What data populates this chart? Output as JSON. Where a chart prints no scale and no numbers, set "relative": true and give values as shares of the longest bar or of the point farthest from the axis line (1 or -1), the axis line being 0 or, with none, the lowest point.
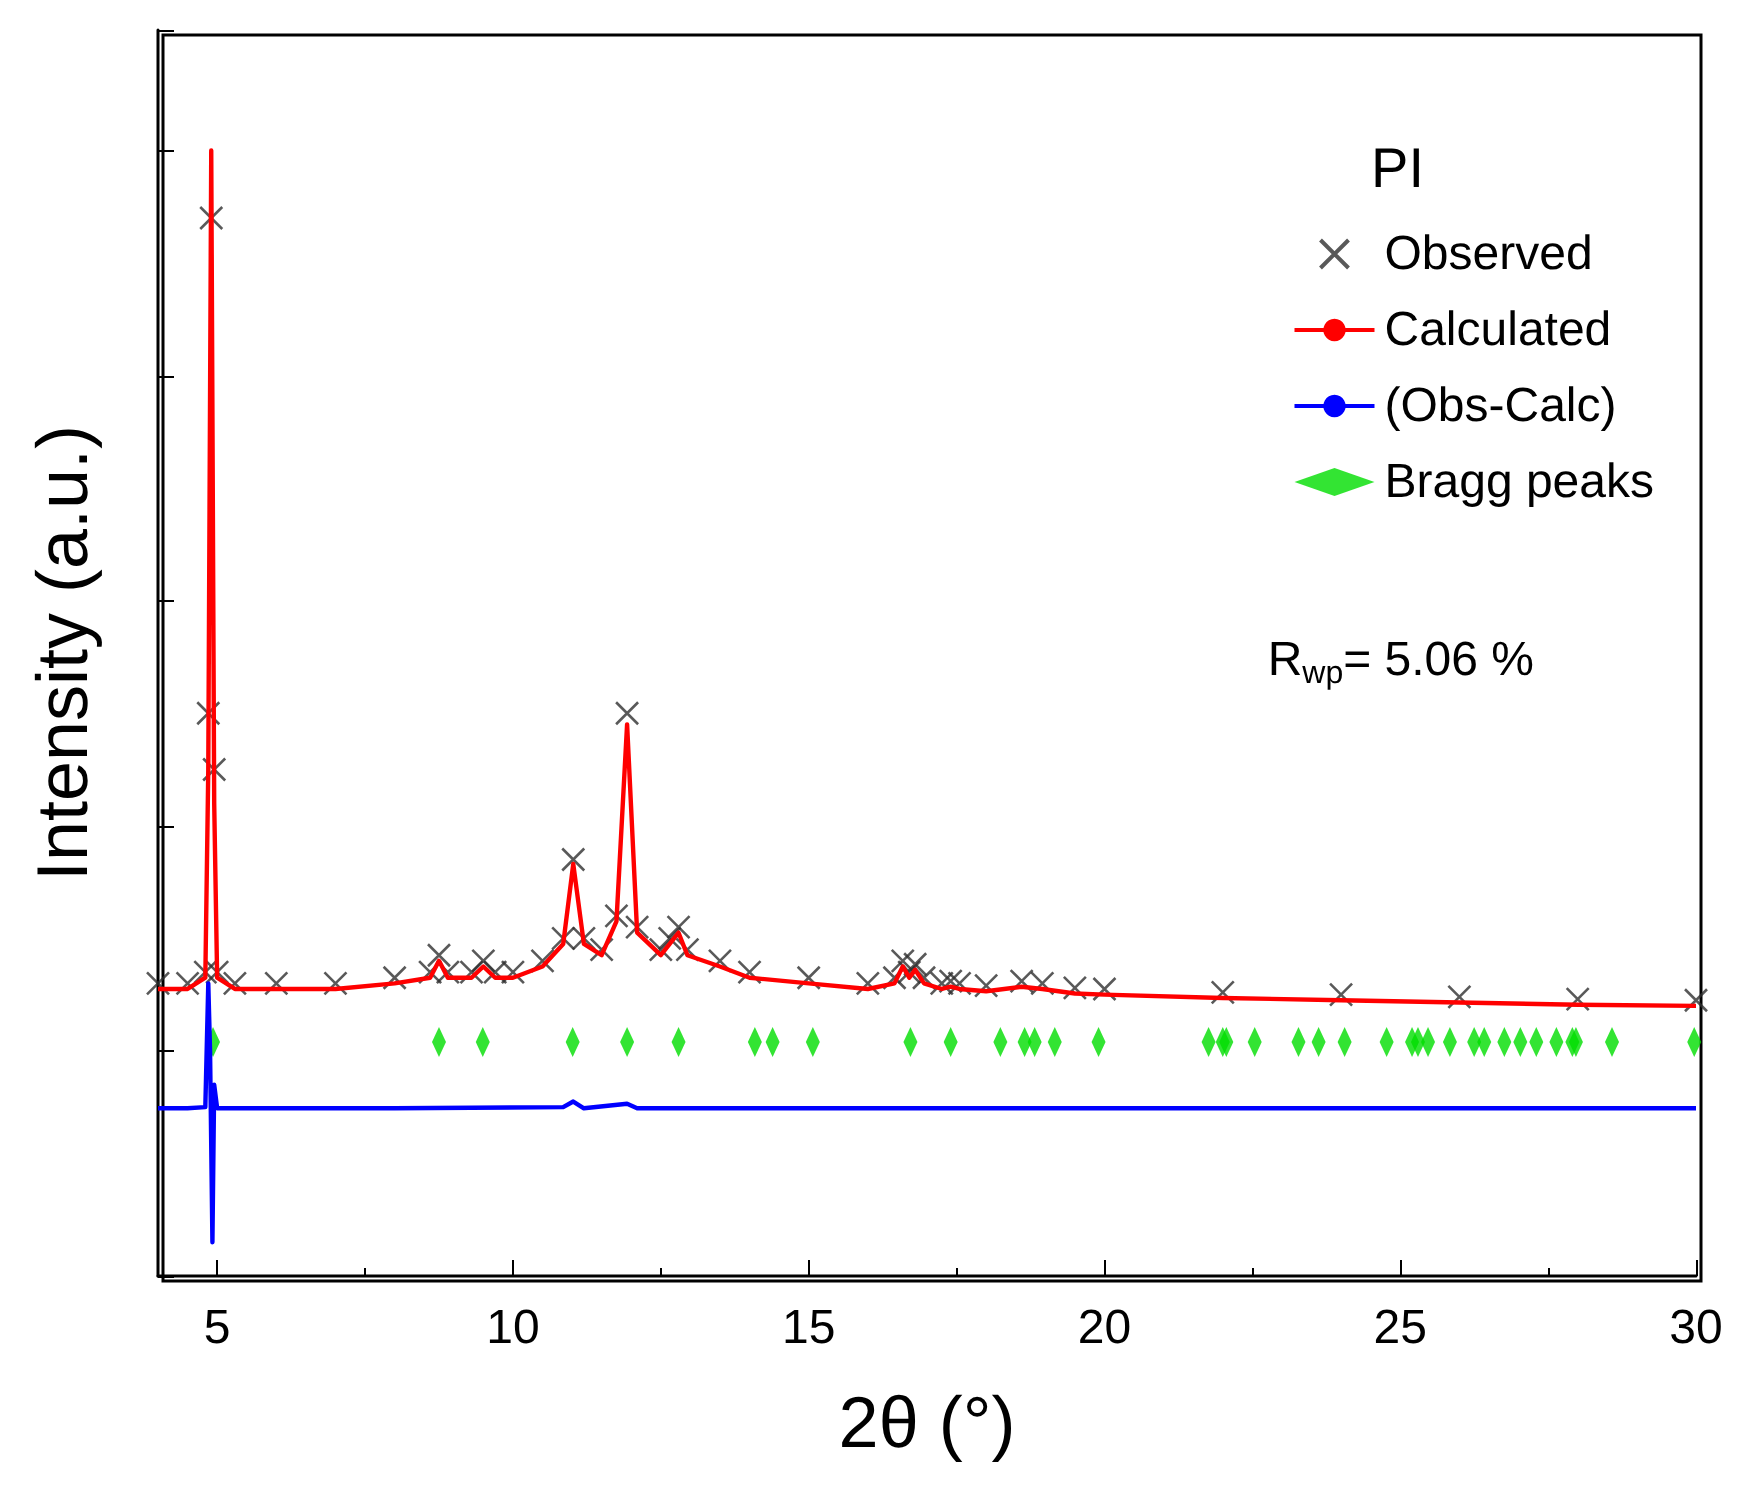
{
  "chart_data": {
    "type": "scatter",
    "relative": true,
    "xlabel": "2θ (°)",
    "ylabel": "Intensity (a.u.)",
    "legend_title": "PI",
    "legend": "top right",
    "tick_labels": "x",
    "grid": false,
    "xlim": [
      4,
      30
    ],
    "xticks": [
      5,
      10,
      15,
      20,
      25,
      30
    ],
    "annotations": [
      "R$_{wp}$= 5.06 %"
    ],
    "series": [
      {
        "name": "Observed",
        "type": "scatter",
        "marker": "cross",
        "color": "#303030",
        "x": [
          4,
          4.5,
          4.8,
          4.85,
          4.9,
          4.95,
          5.0,
          5.3,
          6,
          7,
          8,
          8.6,
          8.75,
          8.9,
          9.3,
          9.5,
          9.7,
          10,
          10.5,
          10.85,
          11.02,
          11.2,
          11.5,
          11.75,
          11.93,
          12.1,
          12.5,
          12.65,
          12.8,
          12.95,
          13.5,
          14,
          15,
          16,
          16.45,
          16.59,
          16.7,
          16.8,
          16.95,
          17.25,
          17.4,
          17.55,
          18,
          18.6,
          18.95,
          19.5,
          20,
          22,
          24,
          26,
          28,
          30
        ],
        "values": [
          0.26,
          0.26,
          0.27,
          0.5,
          0.94,
          0.45,
          0.27,
          0.26,
          0.26,
          0.26,
          0.265,
          0.27,
          0.285,
          0.27,
          0.27,
          0.28,
          0.27,
          0.27,
          0.28,
          0.3,
          0.37,
          0.3,
          0.29,
          0.32,
          0.5,
          0.31,
          0.29,
          0.3,
          0.31,
          0.29,
          0.28,
          0.27,
          0.265,
          0.26,
          0.265,
          0.28,
          0.27,
          0.277,
          0.265,
          0.26,
          0.262,
          0.26,
          0.258,
          0.262,
          0.26,
          0.256,
          0.255,
          0.252,
          0.25,
          0.248,
          0.246,
          0.245
        ]
      },
      {
        "name": "Calculated",
        "type": "line",
        "marker": "none",
        "color": "#ff0000",
        "x": [
          4,
          4.5,
          4.8,
          4.85,
          4.9,
          4.95,
          5.0,
          5.3,
          6,
          7,
          8,
          8.6,
          8.75,
          8.9,
          9.3,
          9.5,
          9.7,
          10,
          10.5,
          10.85,
          11.02,
          11.2,
          11.5,
          11.75,
          11.93,
          12.1,
          12.5,
          12.65,
          12.8,
          12.95,
          13.5,
          14,
          15,
          16,
          16.45,
          16.59,
          16.7,
          16.8,
          16.95,
          17.25,
          17.4,
          17.55,
          18,
          18.6,
          18.95,
          19.5,
          20,
          22,
          24,
          26,
          28,
          30
        ],
        "values": [
          0.255,
          0.255,
          0.265,
          0.45,
          1.0,
          0.42,
          0.265,
          0.255,
          0.255,
          0.255,
          0.26,
          0.265,
          0.28,
          0.265,
          0.265,
          0.275,
          0.265,
          0.265,
          0.275,
          0.295,
          0.366,
          0.295,
          0.285,
          0.315,
          0.49,
          0.305,
          0.285,
          0.295,
          0.305,
          0.285,
          0.275,
          0.265,
          0.26,
          0.255,
          0.26,
          0.275,
          0.265,
          0.272,
          0.26,
          0.255,
          0.257,
          0.255,
          0.253,
          0.257,
          0.255,
          0.251,
          0.25,
          0.247,
          0.245,
          0.243,
          0.241,
          0.24
        ]
      },
      {
        "name": "(Obs-Calc)",
        "type": "line",
        "marker": "none",
        "color": "#0000ff",
        "x": [
          4,
          4.5,
          4.8,
          4.85,
          4.88,
          4.92,
          4.95,
          5.0,
          5.3,
          8,
          10.85,
          11.02,
          11.2,
          11.93,
          12.1,
          16,
          20,
          25,
          30
        ],
        "values": [
          0.149,
          0.149,
          0.15,
          0.26,
          0.2,
          0.03,
          0.17,
          0.149,
          0.149,
          0.149,
          0.15,
          0.155,
          0.149,
          0.153,
          0.149,
          0.149,
          0.149,
          0.149,
          0.149
        ]
      },
      {
        "name": "Bragg peaks",
        "type": "scatter",
        "marker": "diamond",
        "color": "#00dd00",
        "x": [
          4.93,
          8.75,
          9.49,
          11.01,
          11.93,
          12.8,
          14.09,
          14.39,
          15.07,
          16.72,
          17.4,
          18.24,
          18.65,
          18.82,
          19.16,
          19.9,
          21.76,
          22.0,
          22.06,
          22.54,
          23.28,
          23.62,
          24.06,
          24.77,
          25.2,
          25.3,
          25.47,
          25.84,
          26.25,
          26.42,
          26.76,
          27.03,
          27.3,
          27.64,
          27.91,
          27.97,
          28.58,
          29.97
        ],
        "values": [
          0.208,
          0.208,
          0.208,
          0.208,
          0.208,
          0.208,
          0.208,
          0.208,
          0.208,
          0.208,
          0.208,
          0.208,
          0.208,
          0.208,
          0.208,
          0.208,
          0.208,
          0.208,
          0.208,
          0.208,
          0.208,
          0.208,
          0.208,
          0.208,
          0.208,
          0.208,
          0.208,
          0.208,
          0.208,
          0.208,
          0.208,
          0.208,
          0.208,
          0.208,
          0.208,
          0.208,
          0.208,
          0.208
        ]
      }
    ]
  }
}
